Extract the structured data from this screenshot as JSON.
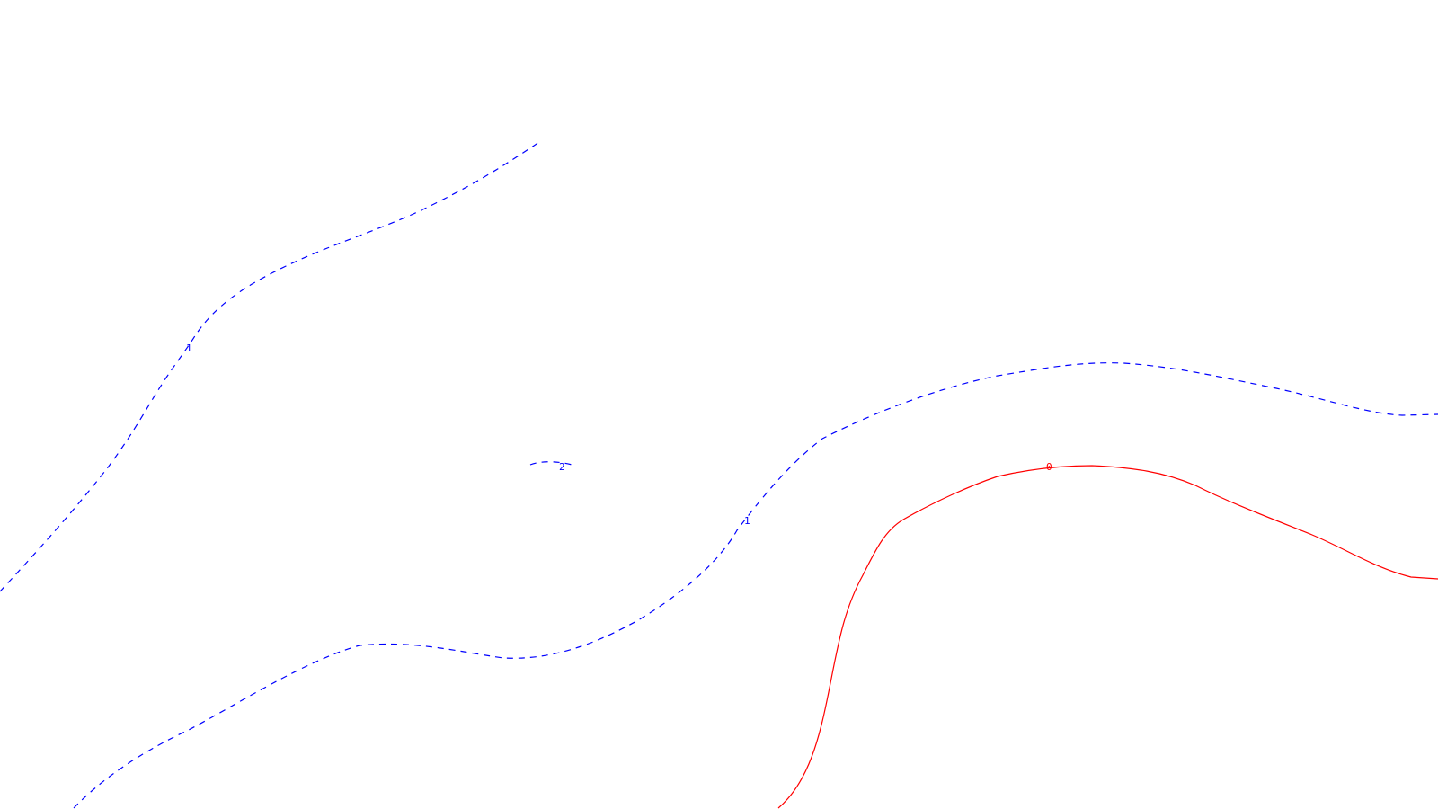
{
  "map": {
    "type": "contour-map",
    "colors": {
      "negative": "#0000ff",
      "zero": "#ff0000",
      "background": "#ffffff"
    },
    "contours": [
      {
        "id": "neg-1-west",
        "level": -1,
        "style": "dashed",
        "color": "#0000ff",
        "label": "1"
      },
      {
        "id": "neg-1-central",
        "level": -1,
        "style": "dashed",
        "color": "#0000ff",
        "label": "1"
      },
      {
        "id": "neg-2-closed",
        "level": -2,
        "style": "dashed",
        "color": "#0000ff",
        "label": "2"
      },
      {
        "id": "zero-line",
        "level": 0,
        "style": "solid",
        "color": "#ff0000",
        "label": "0"
      }
    ]
  }
}
